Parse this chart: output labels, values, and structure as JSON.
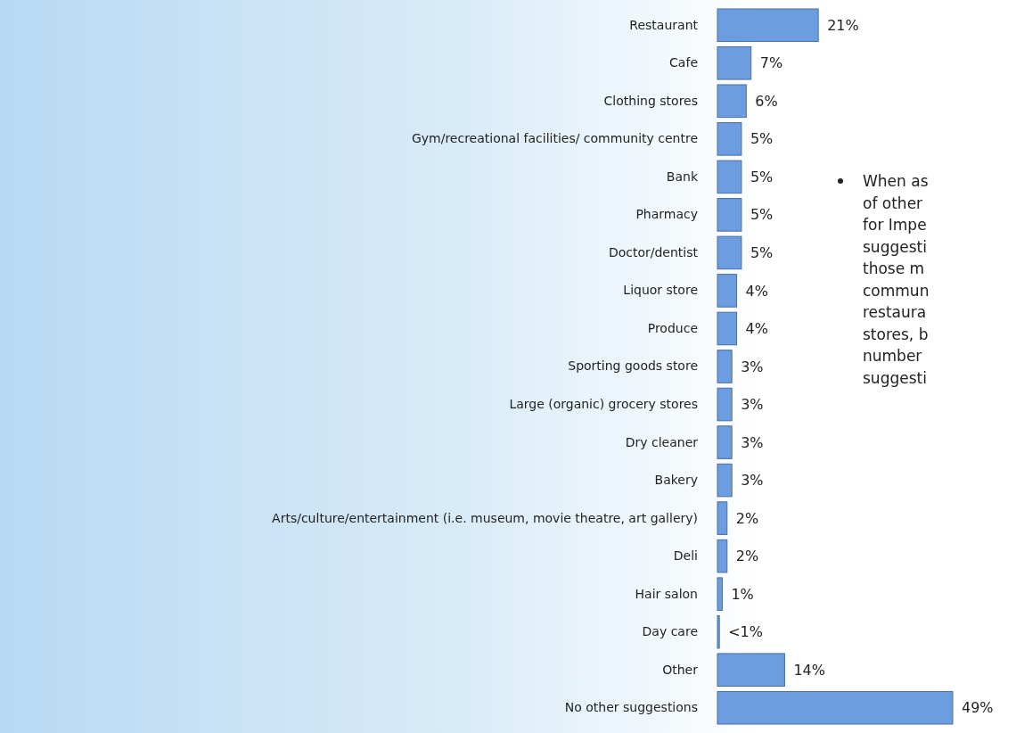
{
  "chart_data": {
    "type": "bar",
    "orientation": "horizontal",
    "categories": [
      "Restaurant",
      "Cafe",
      "Clothing stores",
      "Gym/recreational facilities/ community centre",
      "Bank",
      "Pharmacy",
      "Doctor/dentist",
      "Liquor store",
      "Produce",
      "Sporting goods store",
      "Large (organic) grocery stores",
      "Dry cleaner",
      "Bakery",
      "Arts/culture/entertainment (i.e. museum, movie theatre, art gallery)",
      "Deli",
      "Hair salon",
      "Day care",
      "Other",
      "No other suggestions"
    ],
    "values": [
      21,
      7,
      6,
      5,
      5,
      5,
      5,
      4,
      4,
      3,
      3,
      3,
      3,
      2,
      2,
      1,
      0.4,
      14,
      49
    ],
    "value_labels": [
      "21%",
      "7%",
      "6%",
      "5%",
      "5%",
      "5%",
      "5%",
      "4%",
      "4%",
      "3%",
      "3%",
      "3%",
      "3%",
      "2%",
      "2%",
      "1%",
      "<1%",
      "14%",
      "49%"
    ],
    "color": "#6b9de0",
    "annotations": [
      "When as\nof other\nfor Impe\nsuggesti\nthose m\ncommun\nrestaura\nstores, b\nnumber\nsuggesti"
    ]
  }
}
